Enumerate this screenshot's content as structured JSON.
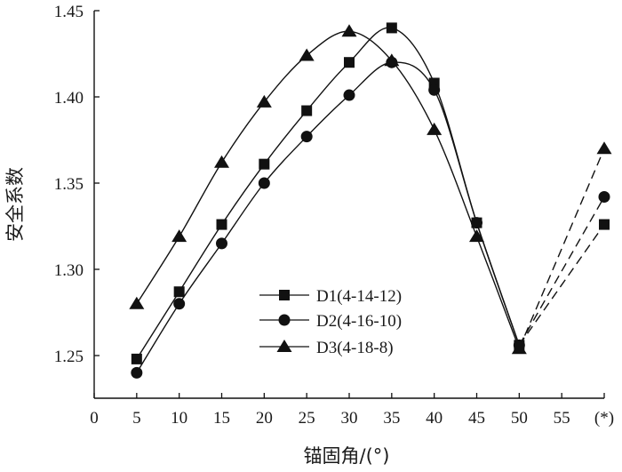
{
  "chart_data": {
    "type": "line",
    "xlabel": "锚固角/(°)",
    "ylabel": "安全系数",
    "xlim": [
      0,
      60
    ],
    "ylim": [
      1.25,
      1.45
    ],
    "x_ticks": [
      {
        "value": 0,
        "label": "0"
      },
      {
        "value": 5,
        "label": "5"
      },
      {
        "value": 10,
        "label": "10"
      },
      {
        "value": 15,
        "label": "15"
      },
      {
        "value": 20,
        "label": "20"
      },
      {
        "value": 25,
        "label": "25"
      },
      {
        "value": 30,
        "label": "30"
      },
      {
        "value": 35,
        "label": "35"
      },
      {
        "value": 40,
        "label": "40"
      },
      {
        "value": 45,
        "label": "45"
      },
      {
        "value": 50,
        "label": "50"
      },
      {
        "value": 55,
        "label": "55"
      },
      {
        "value": 60,
        "label": "(*)"
      }
    ],
    "y_ticks": [
      {
        "value": 1.25,
        "label": "1.25"
      },
      {
        "value": 1.3,
        "label": "1.30"
      },
      {
        "value": 1.35,
        "label": "1.35"
      },
      {
        "value": 1.4,
        "label": "1.40"
      },
      {
        "value": 1.45,
        "label": "1.45"
      }
    ],
    "grid": false,
    "legend_position": "lower-center",
    "series": [
      {
        "name": "D1(4-14-12)",
        "marker": "square",
        "x": [
          5,
          10,
          15,
          20,
          25,
          30,
          35,
          40,
          45,
          50
        ],
        "y": [
          1.248,
          1.287,
          1.326,
          1.361,
          1.392,
          1.42,
          1.44,
          1.408,
          1.327,
          1.256
        ],
        "extension": {
          "x": 60,
          "y": 1.326
        }
      },
      {
        "name": "D2(4-16-10)",
        "marker": "circle",
        "x": [
          5,
          10,
          15,
          20,
          25,
          30,
          35,
          40,
          45,
          50
        ],
        "y": [
          1.24,
          1.28,
          1.315,
          1.35,
          1.377,
          1.401,
          1.42,
          1.404,
          1.327,
          1.256
        ],
        "extension": {
          "x": 60,
          "y": 1.342
        }
      },
      {
        "name": "D3(4-18-8)",
        "marker": "triangle",
        "x": [
          5,
          10,
          15,
          20,
          25,
          30,
          35,
          40,
          45,
          50
        ],
        "y": [
          1.28,
          1.319,
          1.362,
          1.397,
          1.424,
          1.438,
          1.421,
          1.381,
          1.319,
          1.254
        ],
        "extension": {
          "x": 60,
          "y": 1.37
        }
      }
    ]
  }
}
